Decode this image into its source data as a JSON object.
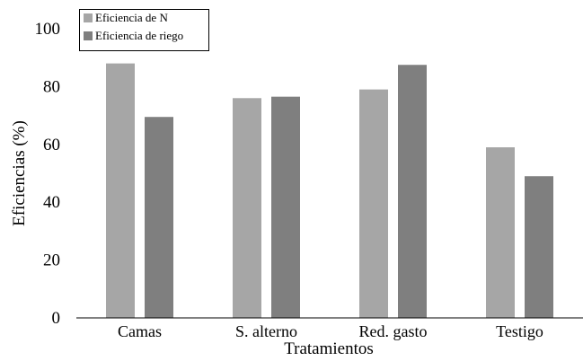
{
  "chart_data": {
    "type": "bar",
    "title": "",
    "xlabel": "Tratamientos",
    "ylabel": "Eficiencias (%)",
    "ylim": [
      0,
      100
    ],
    "yticks": [
      0,
      20,
      40,
      60,
      80,
      100
    ],
    "grid": false,
    "legend_position": "top-left",
    "categories": [
      "Camas",
      "S. alterno",
      "Red. gasto",
      "Testigo"
    ],
    "series": [
      {
        "name": "Eficiencia de N",
        "color": "#a6a6a6",
        "values": [
          88,
          76,
          79,
          59
        ]
      },
      {
        "name": "Eficiencia de riego",
        "color": "#7f7f7f",
        "values": [
          69.5,
          76.5,
          87.5,
          49
        ]
      }
    ]
  }
}
